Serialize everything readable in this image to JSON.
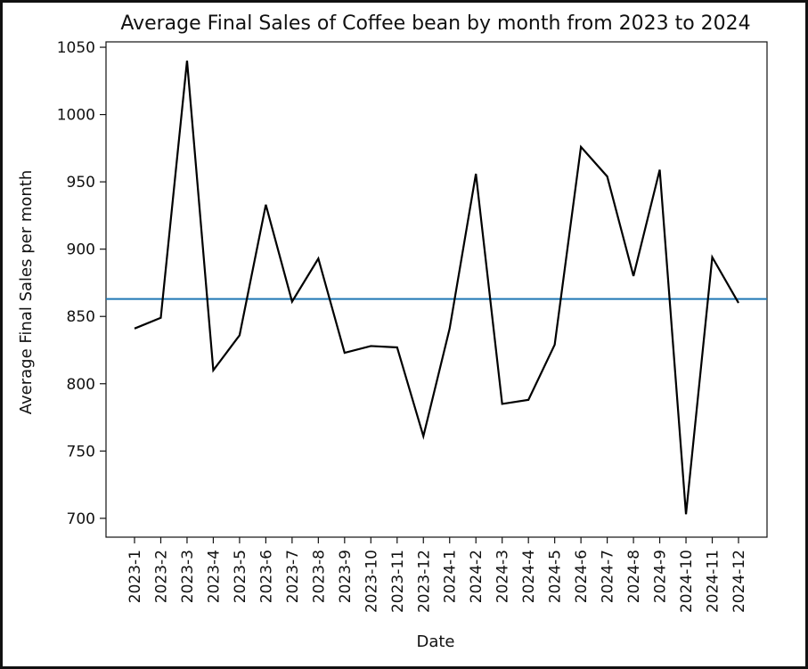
{
  "chart_data": {
    "type": "line",
    "title": "Average Final Sales of Coffee bean by month from 2023 to 2024",
    "xlabel": "Date",
    "ylabel": "Average Final Sales per month",
    "categories": [
      "2023-1",
      "2023-2",
      "2023-3",
      "2023-4",
      "2023-5",
      "2023-6",
      "2023-7",
      "2023-8",
      "2023-9",
      "2023-10",
      "2023-11",
      "2023-12",
      "2024-1",
      "2024-2",
      "2024-3",
      "2024-4",
      "2024-5",
      "2024-6",
      "2024-7",
      "2024-8",
      "2024-9",
      "2024-10",
      "2024-11",
      "2024-12"
    ],
    "series": [
      {
        "values": [
          841,
          849,
          1040,
          810,
          836,
          933,
          861,
          893,
          823,
          828,
          827,
          761,
          841,
          956,
          785,
          788,
          829,
          976,
          954,
          880,
          959,
          703,
          894,
          860
        ],
        "color": "#000000"
      }
    ],
    "reference_line": {
      "value": 863,
      "color": "#1f77b4"
    },
    "ylim": [
      686,
      1054
    ],
    "yticks": [
      700,
      750,
      800,
      850,
      900,
      950,
      1000,
      1050
    ],
    "grid": false,
    "legend": "none"
  }
}
